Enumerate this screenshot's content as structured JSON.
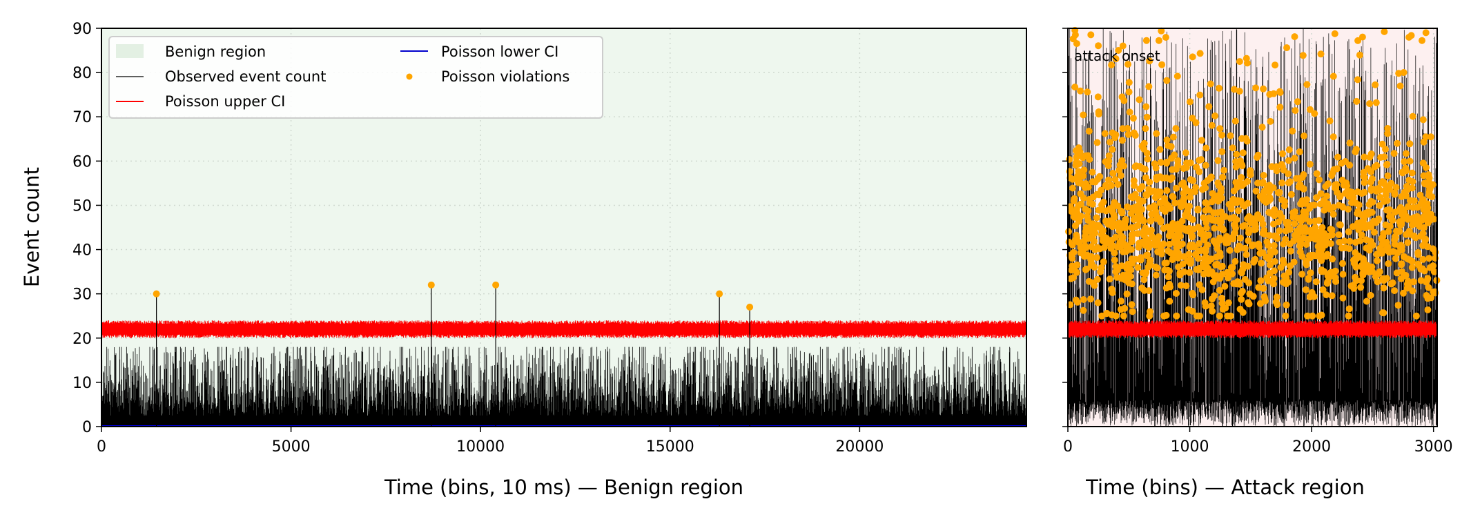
{
  "chart_data": [
    {
      "panel": "benign",
      "type": "line",
      "xlabel": "Time (bins, 10 ms) — Benign region",
      "ylabel": "Event count",
      "xlim": [
        0,
        24400
      ],
      "ylim": [
        0,
        90
      ],
      "x_ticks": [
        "0",
        "5000",
        "10000",
        "15000",
        "20000"
      ],
      "x_tick_values": [
        0,
        5000,
        10000,
        15000,
        20000
      ],
      "y_ticks": [
        "0",
        "10",
        "20",
        "30",
        "40",
        "50",
        "60",
        "70",
        "80",
        "90"
      ],
      "y_tick_values": [
        0,
        10,
        20,
        30,
        40,
        50,
        60,
        70,
        80,
        90
      ],
      "grid": true,
      "shaded_region": {
        "label": "Benign region",
        "color": "#eef7ee",
        "x_range": [
          0,
          24400
        ]
      },
      "series": [
        {
          "name": "Observed event count",
          "color": "#000000",
          "baseline_range": [
            0,
            18
          ],
          "n_bins": 24400
        },
        {
          "name": "Poisson upper CI",
          "color": "#ff0000",
          "band": [
            20,
            24
          ]
        },
        {
          "name": "Poisson lower CI",
          "color": "#0000cc",
          "value": 0
        },
        {
          "name": "Poisson violations",
          "color": "#ffa500",
          "points": [
            {
              "x": 1450,
              "y": 30
            },
            {
              "x": 8700,
              "y": 32
            },
            {
              "x": 10400,
              "y": 32
            },
            {
              "x": 16300,
              "y": 30
            },
            {
              "x": 17100,
              "y": 27
            }
          ]
        }
      ],
      "legend": {
        "placement": "upper-left",
        "entries": [
          "Benign region",
          "Observed event count",
          "Poisson upper CI",
          "Poisson lower CI",
          "Poisson violations"
        ]
      }
    },
    {
      "panel": "attack",
      "type": "line",
      "xlabel": "Time (bins) — Attack region",
      "ylabel": "",
      "xlim": [
        0,
        3030
      ],
      "ylim": [
        0,
        90
      ],
      "x_ticks": [
        "0",
        "1000",
        "2000",
        "3000"
      ],
      "x_tick_values": [
        0,
        1000,
        2000,
        3000
      ],
      "y_tick_values": [
        0,
        10,
        20,
        30,
        40,
        50,
        60,
        70,
        80,
        90
      ],
      "grid": true,
      "shaded_region": {
        "label": "Attack region",
        "color": "#fdf0f0",
        "x_range": [
          0,
          3030
        ]
      },
      "annotation": {
        "text": "attack onset",
        "color": "#aa0000"
      },
      "series": [
        {
          "name": "Observed event count",
          "color": "#000000",
          "range": [
            0,
            90
          ],
          "n_bins": 3030
        },
        {
          "name": "Poisson upper CI",
          "color": "#ff0000",
          "band": [
            20,
            24
          ]
        },
        {
          "name": "Poisson violations",
          "color": "#ffa500",
          "center": 45,
          "spread": [
            25,
            90
          ]
        }
      ]
    }
  ],
  "colors": {
    "benign_bg": "#eef7ee",
    "attack_bg": "#fdf0f0",
    "observed": "#000000",
    "upper_ci": "#ff0000",
    "lower_ci": "#0000cc",
    "violations": "#ffa500",
    "annotation": "#aa0000"
  }
}
